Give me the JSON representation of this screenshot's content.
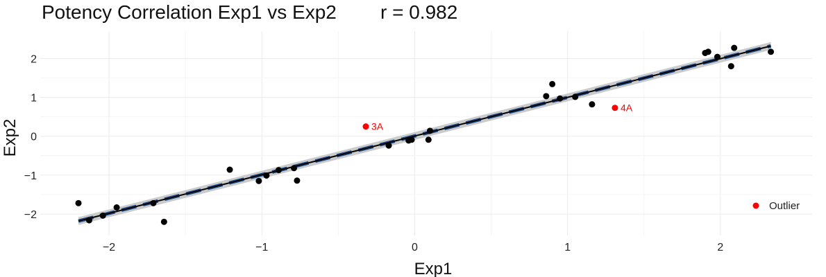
{
  "chart_data": {
    "type": "scatter",
    "title": "Potency Correlation Exp1 vs Exp2",
    "annotation": "r = 0.982",
    "xlabel": "Exp1",
    "ylabel": "Exp2",
    "xlim": [
      -2.45,
      2.6
    ],
    "ylim": [
      -2.55,
      2.7
    ],
    "xticks": [
      -2,
      -1,
      0,
      1,
      2
    ],
    "yticks": [
      -2,
      -1,
      0,
      1,
      2
    ],
    "xtick_labels": [
      "−2",
      "−1",
      "0",
      "1",
      "2"
    ],
    "ytick_labels": [
      "−2",
      "−1",
      "0",
      "1",
      "2"
    ],
    "grid": true,
    "points": [
      {
        "x": -2.2,
        "y": -1.72
      },
      {
        "x": -2.13,
        "y": -2.16
      },
      {
        "x": -2.04,
        "y": -2.04
      },
      {
        "x": -1.95,
        "y": -1.83
      },
      {
        "x": -1.71,
        "y": -1.72
      },
      {
        "x": -1.64,
        "y": -2.2
      },
      {
        "x": -1.21,
        "y": -0.86
      },
      {
        "x": -1.02,
        "y": -1.15
      },
      {
        "x": -0.97,
        "y": -1.01
      },
      {
        "x": -0.89,
        "y": -0.87
      },
      {
        "x": -0.79,
        "y": -0.82
      },
      {
        "x": -0.77,
        "y": -1.14
      },
      {
        "x": -0.17,
        "y": -0.24
      },
      {
        "x": -0.04,
        "y": -0.11
      },
      {
        "x": -0.02,
        "y": -0.09
      },
      {
        "x": 0.09,
        "y": -0.09
      },
      {
        "x": 0.1,
        "y": 0.14
      },
      {
        "x": 0.86,
        "y": 1.03
      },
      {
        "x": 0.9,
        "y": 1.34
      },
      {
        "x": 0.95,
        "y": 0.97
      },
      {
        "x": 1.05,
        "y": 1.01
      },
      {
        "x": 1.16,
        "y": 0.82
      },
      {
        "x": 1.9,
        "y": 2.14
      },
      {
        "x": 1.92,
        "y": 2.17
      },
      {
        "x": 1.98,
        "y": 2.04
      },
      {
        "x": 2.07,
        "y": 1.8
      },
      {
        "x": 2.09,
        "y": 2.27
      },
      {
        "x": 2.33,
        "y": 2.17
      }
    ],
    "outliers": [
      {
        "x": -0.32,
        "y": 0.25,
        "label": "3A"
      },
      {
        "x": 1.31,
        "y": 0.73,
        "label": "4A"
      }
    ],
    "fit_line": {
      "x": [
        -2.2,
        2.33
      ],
      "y": [
        -2.18,
        2.32
      ]
    },
    "confidence_band_halfwidth": 0.1,
    "legend": {
      "position": "bottom-right",
      "entries": [
        {
          "label": "Outlier",
          "color": "#ff0000"
        }
      ]
    },
    "colors": {
      "points": "#000000",
      "outlier": "#ff0000",
      "fit": "#000000",
      "dashed": "#1f4e8c",
      "band": "#c8c8c8",
      "grid": "#ebebeb"
    }
  }
}
